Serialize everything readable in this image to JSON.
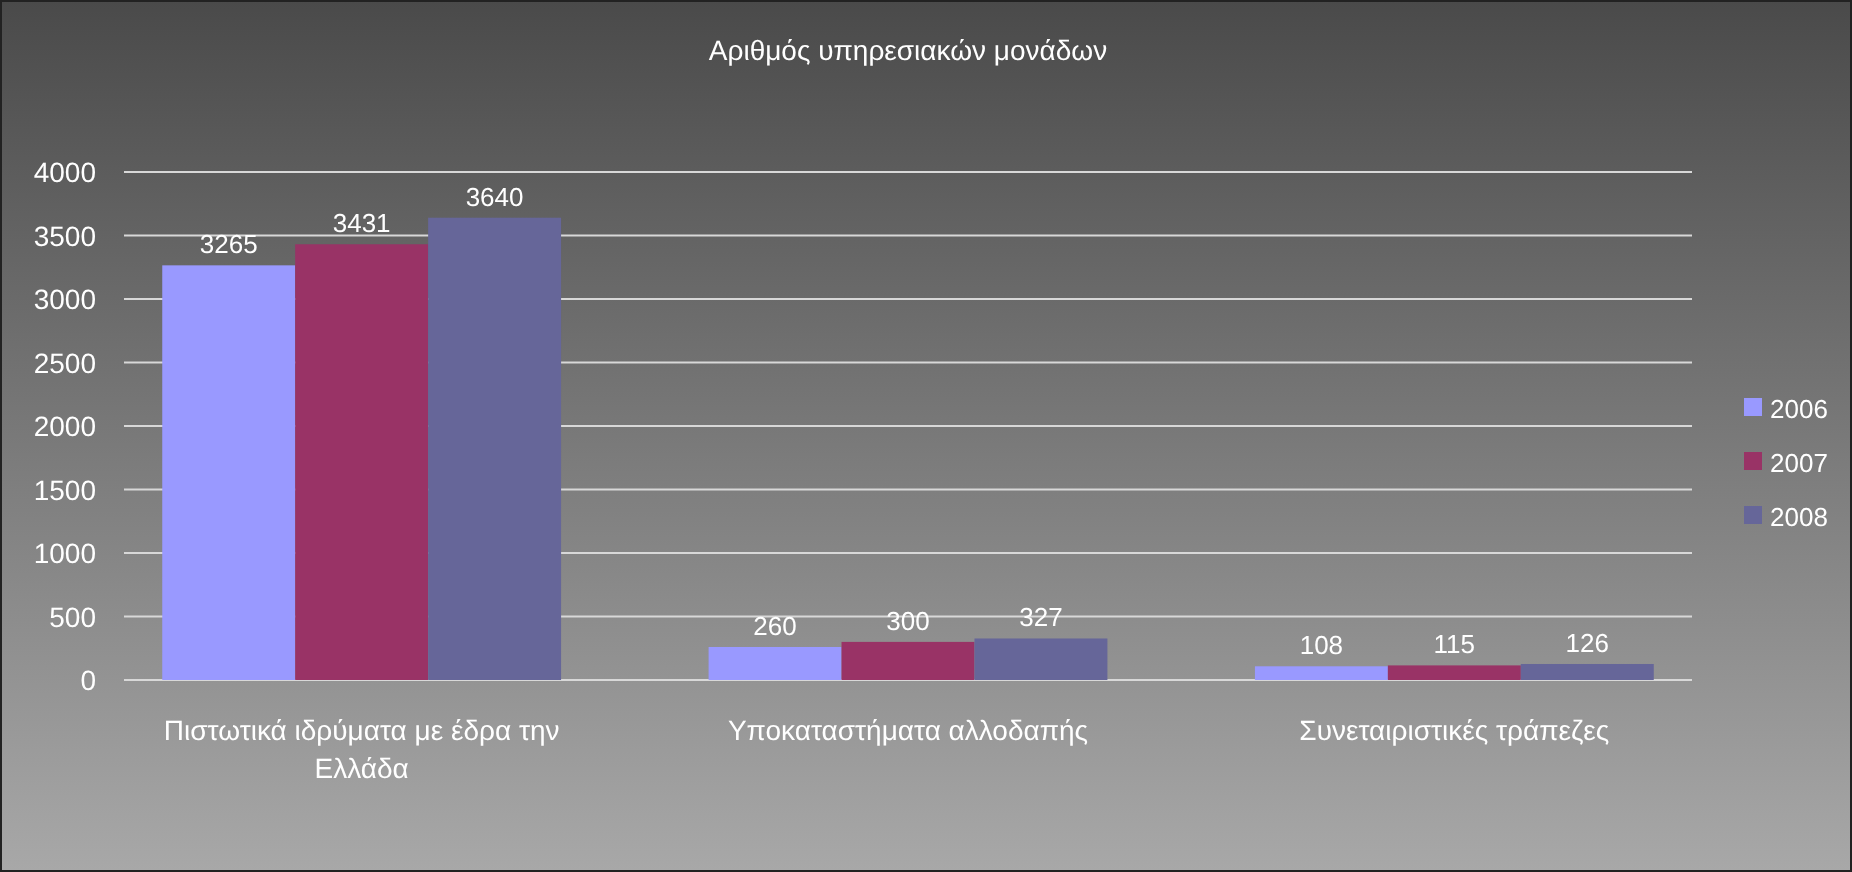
{
  "chart_data": {
    "type": "bar",
    "title": "Αριθμός υπηρεσιακών μονάδων",
    "categories": [
      "Πιστωτικά ιδρύματα με έδρα την Ελλάδα",
      "Υποκαταστήματα αλλοδαπής",
      "Συνεταιριστικές τράπεζες"
    ],
    "series": [
      {
        "name": "2006",
        "color": "#9999ff",
        "values": [
          3265,
          260,
          108
        ]
      },
      {
        "name": "2007",
        "color": "#993366",
        "values": [
          3431,
          300,
          115
        ]
      },
      {
        "name": "2008",
        "color": "#666699",
        "values": [
          3640,
          327,
          126
        ]
      }
    ],
    "ylim": [
      0,
      4000
    ],
    "yticks": [
      0,
      500,
      1000,
      1500,
      2000,
      2500,
      3000,
      3500,
      4000
    ],
    "grid": "y",
    "legend": "right",
    "data_labels": true
  }
}
